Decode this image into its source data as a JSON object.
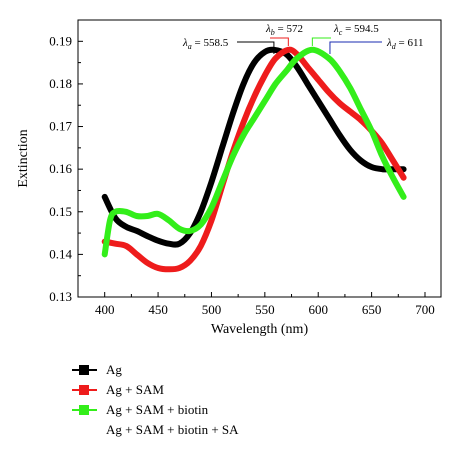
{
  "chart_data": {
    "type": "line",
    "xlabel": "Wavelength (nm)",
    "ylabel": "Extinction",
    "xlim": [
      375,
      715
    ],
    "ylim": [
      0.13,
      0.195
    ],
    "xticks": [
      400,
      450,
      500,
      550,
      600,
      650,
      700
    ],
    "yticks": [
      0.13,
      0.14,
      0.15,
      0.16,
      0.17,
      0.18,
      0.19
    ],
    "ytick_labels": [
      "0.13",
      "0.14",
      "0.15",
      "0.16",
      "0.17",
      "0.18",
      "0.19"
    ],
    "grid": false,
    "legend_position": "bottom-left",
    "series": [
      {
        "name": "Ag",
        "color": "#000000",
        "x": [
          400,
          410,
          420,
          430,
          440,
          450,
          460,
          470,
          480,
          490,
          500,
          510,
          520,
          530,
          540,
          550,
          558.5,
          570,
          580,
          590,
          600,
          610,
          620,
          630,
          640,
          650,
          660,
          670,
          680
        ],
        "y": [
          0.1535,
          0.1485,
          0.1465,
          0.1455,
          0.1443,
          0.1432,
          0.1425,
          0.1425,
          0.145,
          0.15,
          0.157,
          0.165,
          0.173,
          0.18,
          0.185,
          0.1875,
          0.188,
          0.187,
          0.184,
          0.18,
          0.176,
          0.172,
          0.168,
          0.1645,
          0.162,
          0.1605,
          0.16,
          0.16,
          0.16
        ]
      },
      {
        "name": "Ag + SAM",
        "color": "#ee1c1c",
        "x": [
          400,
          410,
          420,
          430,
          440,
          450,
          460,
          470,
          480,
          490,
          500,
          510,
          520,
          530,
          540,
          550,
          560,
          572,
          580,
          590,
          600,
          610,
          620,
          630,
          640,
          650,
          660,
          670,
          680
        ],
        "y": [
          0.143,
          0.1425,
          0.142,
          0.14,
          0.138,
          0.1368,
          0.1365,
          0.1368,
          0.1385,
          0.142,
          0.148,
          0.156,
          0.164,
          0.171,
          0.177,
          0.182,
          0.186,
          0.188,
          0.187,
          0.184,
          0.181,
          0.178,
          0.1755,
          0.1735,
          0.1715,
          0.169,
          0.166,
          0.162,
          0.158
        ]
      },
      {
        "name": "Ag + SAM + biotin",
        "color": "#33ee1a",
        "x": [
          400,
          405,
          410,
          420,
          430,
          440,
          450,
          460,
          470,
          480,
          490,
          500,
          510,
          520,
          530,
          540,
          550,
          560,
          570,
          580,
          594.5,
          610,
          620,
          630,
          640,
          650,
          660,
          670,
          680
        ],
        "y": [
          0.14,
          0.148,
          0.15,
          0.15,
          0.149,
          0.149,
          0.1495,
          0.148,
          0.146,
          0.1455,
          0.147,
          0.151,
          0.157,
          0.163,
          0.168,
          0.172,
          0.176,
          0.18,
          0.183,
          0.186,
          0.188,
          0.186,
          0.183,
          0.179,
          0.174,
          0.169,
          0.163,
          0.158,
          0.1535
        ]
      },
      {
        "name": "Ag + SAM + biotin + SA",
        "color": "#ffffff",
        "x": [],
        "y": []
      }
    ],
    "annotations": [
      {
        "symbol": "λ",
        "sub": "a",
        "text": " = 558.5",
        "peak_x": 558.5,
        "color": "#000000"
      },
      {
        "symbol": "λ",
        "sub": "b",
        "text": " = 572",
        "peak_x": 572,
        "color": "#ee1c1c"
      },
      {
        "symbol": "λ",
        "sub": "c",
        "text": " = 594.5",
        "peak_x": 594.5,
        "color": "#33ee1a"
      },
      {
        "symbol": "λ",
        "sub": "d",
        "text": " = 611",
        "peak_x": 611,
        "color": "#1a2bb0"
      }
    ]
  }
}
